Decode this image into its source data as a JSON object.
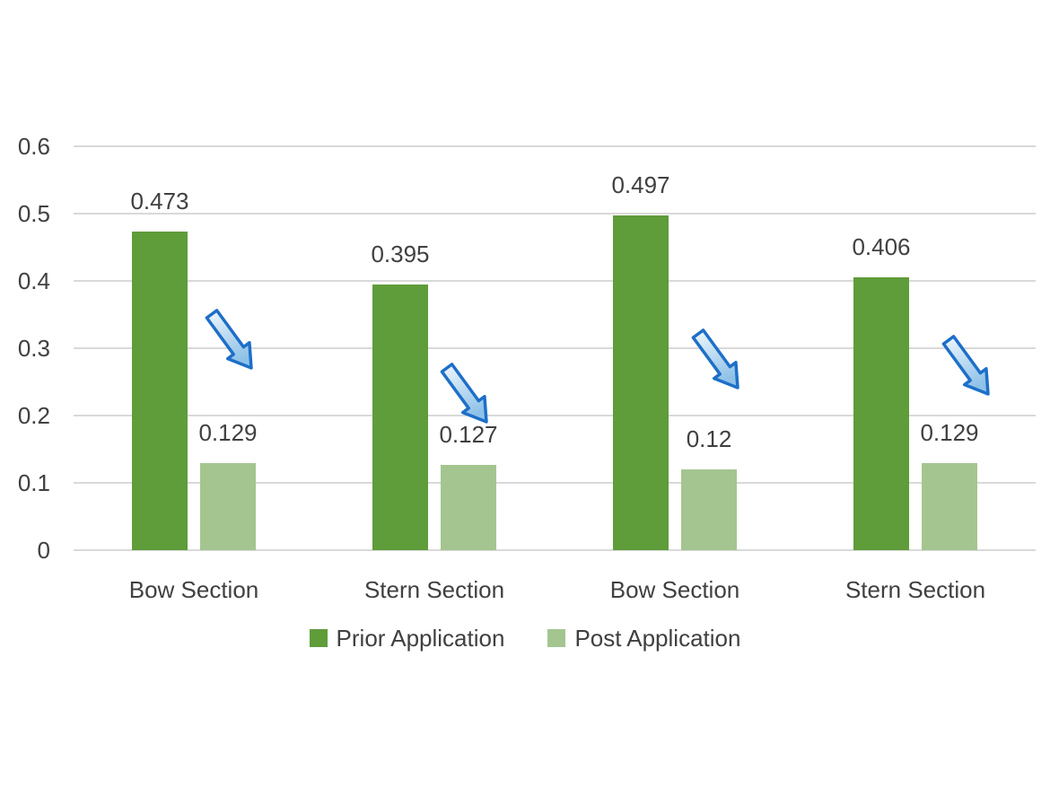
{
  "chart_data": {
    "type": "bar",
    "title": "",
    "categories": [
      "Bow Section",
      "Stern Section",
      "Bow Section",
      "Stern Section"
    ],
    "series": [
      {
        "name": "Prior Application",
        "color": "#5f9c3a",
        "values": [
          0.473,
          0.395,
          0.497,
          0.406
        ]
      },
      {
        "name": "Post Application",
        "color": "#a4c58f",
        "values": [
          0.129,
          0.127,
          0.12,
          0.129
        ]
      }
    ],
    "y_axis": {
      "min": 0,
      "max": 0.6,
      "tick_step": 0.1,
      "tick_values": [
        0,
        0.1,
        0.2,
        0.3,
        0.4,
        0.5,
        0.6
      ],
      "tick_labels": [
        "0",
        "0.1",
        "0.2",
        "0.3",
        "0.4",
        "0.5",
        "0.6"
      ]
    },
    "xlabel": "",
    "ylabel": "",
    "grid": true,
    "legend_position": "bottom",
    "annotations": {
      "type": "down-right-trend-arrow",
      "count": 4,
      "stroke": "#1e6fc8",
      "fill_light": "#f0f8fd",
      "fill_dark": "#8fc2e8"
    }
  },
  "colors": {
    "background": "#ffffff",
    "gridline": "#d9d9d9",
    "text": "#404040"
  }
}
